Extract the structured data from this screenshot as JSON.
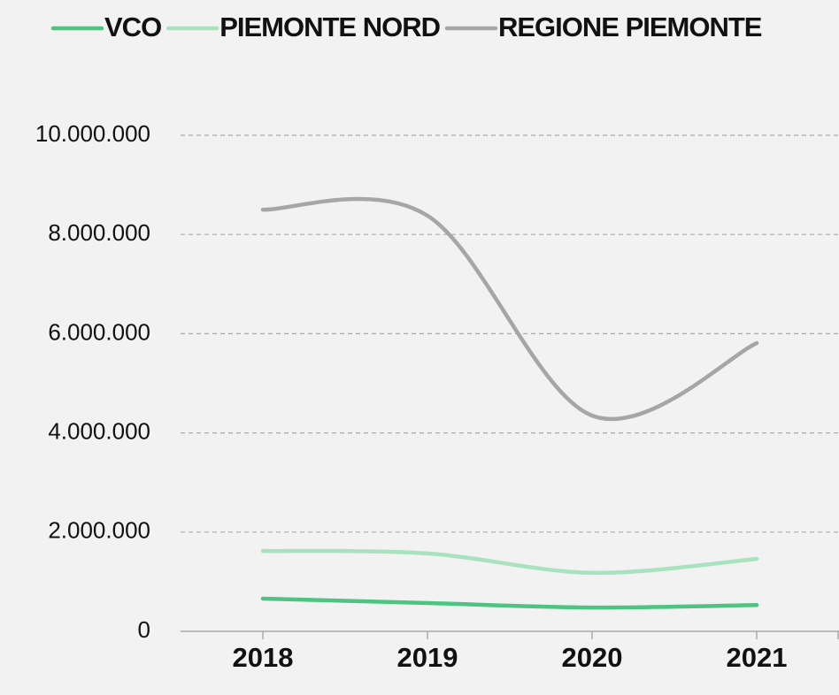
{
  "chart_data": {
    "type": "line",
    "categories": [
      "2018",
      "2019",
      "2020",
      "2021"
    ],
    "series": [
      {
        "name": "VCO",
        "color": "#4dc47f",
        "values": [
          660000,
          570000,
          480000,
          530000
        ]
      },
      {
        "name": "PIEMONTE NORD",
        "color": "#a8e2bf",
        "values": [
          1620000,
          1570000,
          1180000,
          1460000
        ]
      },
      {
        "name": "REGIONE PIEMONTE",
        "color": "#a6a6a6",
        "values": [
          8500000,
          8380000,
          4350000,
          5810000
        ]
      }
    ],
    "ylim": [
      0,
      10000000
    ],
    "yticks": [
      0,
      {
        "value": 2000000,
        "label": "2.000.000"
      },
      {
        "value": 4000000,
        "label": "4.000.000"
      },
      {
        "value": 6000000,
        "label": "6.000.000"
      },
      {
        "value": 8000000,
        "label": "8.000.000"
      },
      {
        "value": 10000000,
        "label": "10.000.000"
      }
    ],
    "grid": true,
    "legend": "top"
  }
}
